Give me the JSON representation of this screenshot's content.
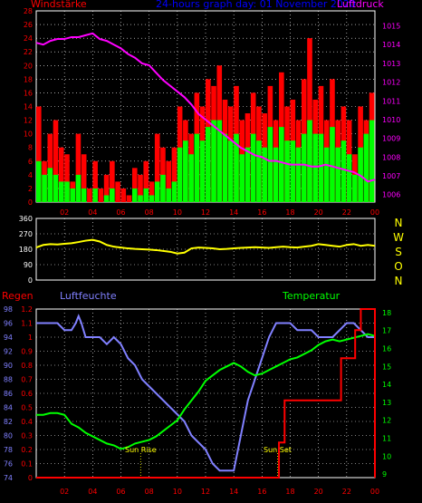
{
  "header": {
    "wind_label": "Windstärke",
    "title": "24-hours graph day: 01 November 2020",
    "pressure_label": "Luftdruck"
  },
  "labels": {
    "rain": "Regen",
    "humidity": "Luftfeuchte",
    "temperature": "Temperatur",
    "sunrise": "Sun Rise",
    "sunset": "Sun Set"
  },
  "colors": {
    "wind_gust": "#ff0000",
    "wind_avg": "#00ff00",
    "pressure": "#ff00ff",
    "direction": "#ffff00",
    "humidity": "#8080ff",
    "temperature": "#00ff00",
    "rain": "#ff0000",
    "title": "#0000ff",
    "marker": "#ffff00",
    "text_axis": "#ff0000",
    "axis_white": "#ffffff"
  },
  "chart_data": [
    {
      "type": "bar",
      "name": "wind",
      "x_ticks": [
        "02",
        "04",
        "06",
        "08",
        "10",
        "12",
        "14",
        "16",
        "18",
        "20",
        "22",
        "00"
      ],
      "y_left_ticks": [
        0,
        2,
        4,
        6,
        8,
        10,
        12,
        14,
        16,
        18,
        20,
        22,
        24,
        26,
        28
      ],
      "y_left_lim": [
        0,
        28
      ],
      "y_right_ticks": [
        1006,
        1007,
        1008,
        1009,
        1010,
        1011,
        1012,
        1013,
        1014,
        1015
      ],
      "y_right_lim": [
        1005.6,
        1015.8
      ],
      "gust_hours": [
        0.0,
        0.4,
        0.8,
        1.2,
        1.6,
        2.0,
        2.4,
        2.8,
        3.2,
        3.6,
        4.0,
        4.4,
        4.8,
        5.2,
        5.6,
        6.0,
        6.4,
        6.8,
        7.2,
        7.6,
        8.0,
        8.4,
        8.8,
        9.2,
        9.6,
        10.0,
        10.4,
        10.8,
        11.2,
        11.6,
        12.0,
        12.4,
        12.8,
        13.2,
        13.6,
        14.0,
        14.4,
        14.8,
        15.2,
        15.6,
        16.0,
        16.4,
        16.8,
        17.2,
        17.6,
        18.0,
        18.4,
        18.8,
        19.2,
        19.6,
        20.0,
        20.4,
        20.8,
        21.2,
        21.6,
        22.0,
        22.4,
        22.8,
        23.2,
        23.6
      ],
      "gust": [
        14,
        6,
        10,
        12,
        8,
        7,
        3,
        10,
        7,
        2,
        6,
        2,
        4,
        6,
        3,
        2,
        1,
        5,
        4,
        6,
        3,
        10,
        8,
        6,
        8,
        14,
        12,
        10,
        16,
        14,
        18,
        17,
        20,
        15,
        14,
        17,
        12,
        13,
        16,
        14,
        13,
        17,
        12,
        19,
        14,
        15,
        12,
        18,
        24,
        15,
        17,
        12,
        18,
        12,
        14,
        12,
        7,
        14,
        12,
        16
      ],
      "avg_hours": [
        0.0,
        0.4,
        0.8,
        1.2,
        1.6,
        2.0,
        2.4,
        2.8,
        3.2,
        3.6,
        4.0,
        4.4,
        4.8,
        5.2,
        5.6,
        6.0,
        6.4,
        6.8,
        7.2,
        7.6,
        8.0,
        8.4,
        8.8,
        9.2,
        9.6,
        10.0,
        10.4,
        10.8,
        11.2,
        11.6,
        12.0,
        12.4,
        12.8,
        13.2,
        13.6,
        14.0,
        14.4,
        14.8,
        15.2,
        15.6,
        16.0,
        16.4,
        16.8,
        17.2,
        17.6,
        18.0,
        18.4,
        18.8,
        19.2,
        19.6,
        20.0,
        20.4,
        20.8,
        21.2,
        21.6,
        22.0,
        22.4,
        22.8,
        23.2,
        23.6
      ],
      "avg": [
        6,
        4,
        5,
        4,
        3,
        3,
        2,
        4,
        2,
        0,
        2,
        0,
        1,
        2,
        0,
        0,
        0,
        2,
        1,
        2,
        1,
        3,
        4,
        2,
        3,
        8,
        9,
        7,
        10,
        9,
        11,
        12,
        12,
        10,
        9,
        10,
        7,
        8,
        10,
        9,
        8,
        11,
        8,
        11,
        9,
        9,
        8,
        10,
        12,
        10,
        10,
        8,
        11,
        8,
        9,
        7,
        4,
        8,
        10,
        12
      ],
      "pressure_hours": [
        0,
        0.5,
        1,
        1.5,
        2,
        2.5,
        3,
        3.5,
        4,
        4.5,
        5,
        5.5,
        6,
        6.5,
        7,
        7.5,
        8,
        8.5,
        9,
        9.5,
        10,
        10.5,
        11,
        11.5,
        12,
        12.5,
        13,
        13.5,
        14,
        14.5,
        15,
        15.5,
        16,
        16.5,
        17,
        17.5,
        18,
        18.5,
        19,
        19.5,
        20,
        20.5,
        21,
        21.5,
        22,
        22.5,
        23,
        23.5,
        24
      ],
      "pressure": [
        1014.1,
        1014.0,
        1014.2,
        1014.3,
        1014.3,
        1014.4,
        1014.4,
        1014.5,
        1014.6,
        1014.3,
        1014.2,
        1014.0,
        1013.8,
        1013.5,
        1013.3,
        1013.0,
        1012.9,
        1012.5,
        1012.1,
        1011.8,
        1011.5,
        1011.2,
        1010.8,
        1010.3,
        1010.0,
        1009.7,
        1009.4,
        1009.1,
        1008.8,
        1008.5,
        1008.3,
        1008.1,
        1008.0,
        1007.8,
        1007.8,
        1007.7,
        1007.6,
        1007.6,
        1007.6,
        1007.5,
        1007.5,
        1007.6,
        1007.5,
        1007.4,
        1007.3,
        1007.2,
        1007.0,
        1006.7,
        1006.8
      ]
    },
    {
      "type": "line",
      "name": "wind_direction",
      "y_left_ticks": [
        0,
        90,
        180,
        270,
        360
      ],
      "y_lim": [
        0,
        360
      ],
      "compass_labels": [
        "N",
        "W",
        "S",
        "O",
        "N"
      ],
      "hours": [
        0,
        0.5,
        1,
        1.5,
        2,
        2.5,
        3,
        3.5,
        4,
        4.5,
        5,
        5.5,
        6,
        6.5,
        7,
        7.5,
        8,
        8.5,
        9,
        9.5,
        10,
        10.5,
        11,
        11.5,
        12,
        12.5,
        13,
        13.5,
        14,
        14.5,
        15,
        15.5,
        16,
        16.5,
        17,
        17.5,
        18,
        18.5,
        19,
        19.5,
        20,
        20.5,
        21,
        21.5,
        22,
        22.5,
        23,
        23.5,
        24
      ],
      "values": [
        190,
        205,
        210,
        208,
        212,
        215,
        222,
        230,
        235,
        225,
        205,
        195,
        190,
        185,
        182,
        180,
        178,
        175,
        170,
        165,
        155,
        160,
        185,
        190,
        188,
        185,
        180,
        182,
        185,
        188,
        190,
        192,
        190,
        188,
        192,
        195,
        192,
        190,
        195,
        200,
        210,
        205,
        200,
        195,
        205,
        210,
        200,
        205,
        200
      ]
    },
    {
      "type": "line",
      "name": "climate",
      "x_ticks": [
        "02",
        "04",
        "06",
        "08",
        "10",
        "12",
        "14",
        "16",
        "18",
        "20",
        "22",
        "00"
      ],
      "rain_ticks": [
        0,
        0.1,
        0.2,
        0.3,
        0.4,
        0.5,
        0.6,
        0.7,
        0.8,
        0.9,
        1,
        1.1,
        1.2
      ],
      "rain_lim": [
        0,
        1.2
      ],
      "humidity_ticks": [
        74,
        76,
        78,
        80,
        82,
        84,
        86,
        88,
        90,
        92,
        94,
        96,
        98
      ],
      "humidity_lim": [
        74,
        98
      ],
      "temp_ticks": [
        9,
        10,
        11,
        12,
        13,
        14,
        15,
        16,
        17,
        18
      ],
      "temp_lim": [
        8.8,
        18.2
      ],
      "sunrise_hour": 7.4,
      "sunset_hour": 17.1,
      "humidity_hours": [
        0,
        0.5,
        1,
        1.5,
        2,
        2.5,
        2.8,
        3,
        3.2,
        3.5,
        3.8,
        4,
        4.5,
        5,
        5.5,
        6,
        6.5,
        7,
        7.5,
        8,
        8.5,
        9,
        9.5,
        10,
        10.5,
        11,
        11.5,
        12,
        12.5,
        13,
        13.5,
        14,
        14.5,
        15,
        15.5,
        16,
        16.5,
        17,
        17.5,
        18,
        18.5,
        19,
        19.5,
        20,
        20.5,
        21,
        21.5,
        22,
        22.5,
        23,
        23.5,
        24
      ],
      "humidity": [
        96,
        96,
        96,
        96,
        95,
        95,
        96,
        97,
        96,
        94,
        94,
        94,
        94,
        93,
        94,
        93,
        91,
        90,
        88,
        87,
        86,
        85,
        84,
        83,
        82,
        80,
        79,
        78,
        76,
        75,
        75,
        75,
        80,
        85,
        88,
        91,
        94,
        96,
        96,
        96,
        95,
        95,
        95,
        94,
        94,
        94,
        95,
        96,
        96,
        95,
        94,
        94
      ],
      "temp_hours": [
        0,
        0.5,
        1,
        1.5,
        2,
        2.5,
        3,
        3.5,
        4,
        4.5,
        5,
        5.5,
        6,
        6.5,
        7,
        7.5,
        8,
        8.5,
        9,
        9.5,
        10,
        10.5,
        11,
        11.5,
        12,
        12.5,
        13,
        13.5,
        14,
        14.5,
        15,
        15.5,
        16,
        16.5,
        17,
        17.5,
        18,
        18.5,
        19,
        19.5,
        20,
        20.5,
        21,
        21.5,
        22,
        22.5,
        23,
        23.5,
        24
      ],
      "temperature": [
        12.3,
        12.3,
        12.4,
        12.4,
        12.3,
        11.8,
        11.6,
        11.3,
        11.1,
        10.9,
        10.7,
        10.6,
        10.4,
        10.5,
        10.7,
        10.8,
        10.9,
        11.1,
        11.4,
        11.7,
        12.0,
        12.6,
        13.1,
        13.6,
        14.2,
        14.5,
        14.8,
        15.0,
        15.2,
        15.0,
        14.7,
        14.5,
        14.6,
        14.8,
        15.0,
        15.2,
        15.4,
        15.5,
        15.7,
        15.9,
        16.2,
        16.4,
        16.5,
        16.4,
        16.5,
        16.6,
        16.7,
        16.8,
        16.7
      ],
      "rain_hours": [
        0,
        17.1,
        17.2,
        17.6,
        18.3,
        21.1,
        21.6,
        22.0,
        22.6,
        23.0,
        23.9,
        24
      ],
      "rain": [
        0,
        0,
        0.25,
        0.55,
        0.55,
        0.55,
        0.85,
        0.85,
        1.05,
        1.2,
        1.2,
        0
      ]
    }
  ]
}
